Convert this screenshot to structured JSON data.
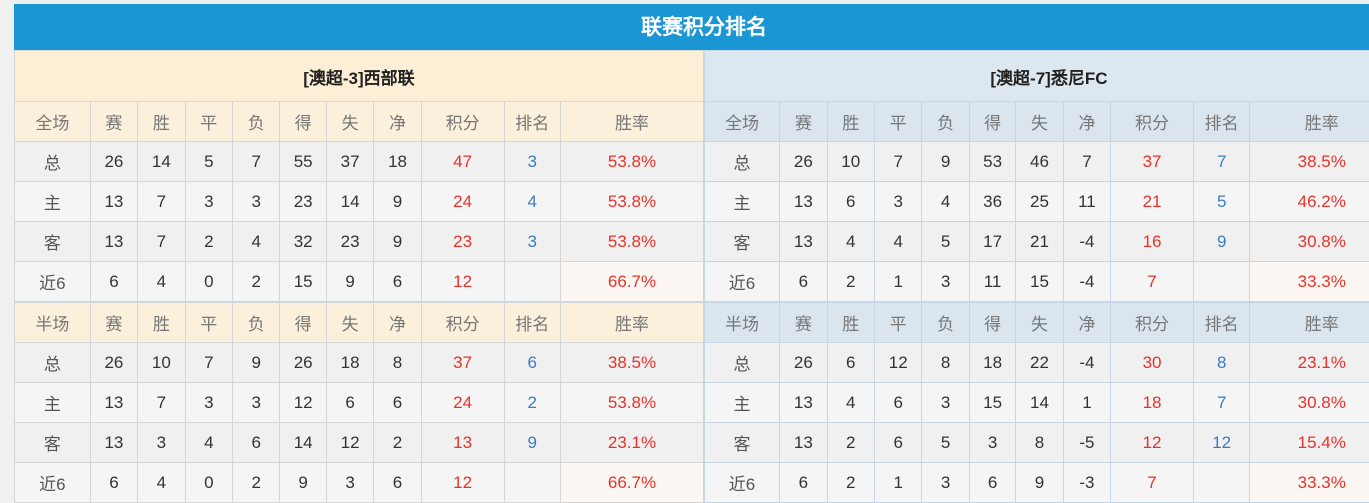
{
  "title": "联赛积分排名",
  "teams": {
    "left": "[澳超-3]西部联",
    "right": "[澳超-7]悉尼FC"
  },
  "colors": {
    "header_bar": "#1a96d4",
    "points": "#e8322a",
    "rank": "#3a7cc2",
    "home": "#e0204d",
    "away": "#3c4fe0"
  },
  "full": {
    "headers": [
      "全场",
      "赛",
      "胜",
      "平",
      "负",
      "得",
      "失",
      "净",
      "积分",
      "排名",
      "胜率"
    ],
    "left": [
      [
        "总",
        "26",
        "14",
        "5",
        "7",
        "55",
        "37",
        "18",
        "47",
        "3",
        "53.8%"
      ],
      [
        "主",
        "13",
        "7",
        "3",
        "3",
        "23",
        "14",
        "9",
        "24",
        "4",
        "53.8%"
      ],
      [
        "客",
        "13",
        "7",
        "2",
        "4",
        "32",
        "23",
        "9",
        "23",
        "3",
        "53.8%"
      ],
      [
        "近6",
        "6",
        "4",
        "0",
        "2",
        "15",
        "9",
        "6",
        "12",
        "",
        "66.7%"
      ]
    ],
    "right": [
      [
        "总",
        "26",
        "10",
        "7",
        "9",
        "53",
        "46",
        "7",
        "37",
        "7",
        "38.5%"
      ],
      [
        "主",
        "13",
        "6",
        "3",
        "4",
        "36",
        "25",
        "11",
        "21",
        "5",
        "46.2%"
      ],
      [
        "客",
        "13",
        "4",
        "4",
        "5",
        "17",
        "21",
        "-4",
        "16",
        "9",
        "30.8%"
      ],
      [
        "近6",
        "6",
        "2",
        "1",
        "3",
        "11",
        "15",
        "-4",
        "7",
        "",
        "33.3%"
      ]
    ]
  },
  "half": {
    "headers": [
      "半场",
      "赛",
      "胜",
      "平",
      "负",
      "得",
      "失",
      "净",
      "积分",
      "排名",
      "胜率"
    ],
    "left": [
      [
        "总",
        "26",
        "10",
        "7",
        "9",
        "26",
        "18",
        "8",
        "37",
        "6",
        "38.5%"
      ],
      [
        "主",
        "13",
        "7",
        "3",
        "3",
        "12",
        "6",
        "6",
        "24",
        "2",
        "53.8%"
      ],
      [
        "客",
        "13",
        "3",
        "4",
        "6",
        "14",
        "12",
        "2",
        "13",
        "9",
        "23.1%"
      ],
      [
        "近6",
        "6",
        "4",
        "0",
        "2",
        "9",
        "3",
        "6",
        "12",
        "",
        "66.7%"
      ]
    ],
    "right": [
      [
        "总",
        "26",
        "6",
        "12",
        "8",
        "18",
        "22",
        "-4",
        "30",
        "8",
        "23.1%"
      ],
      [
        "主",
        "13",
        "4",
        "6",
        "3",
        "15",
        "14",
        "1",
        "18",
        "7",
        "30.8%"
      ],
      [
        "客",
        "13",
        "2",
        "6",
        "5",
        "3",
        "8",
        "-5",
        "12",
        "12",
        "15.4%"
      ],
      [
        "近6",
        "6",
        "2",
        "1",
        "3",
        "6",
        "9",
        "-3",
        "7",
        "",
        "33.3%"
      ]
    ]
  }
}
